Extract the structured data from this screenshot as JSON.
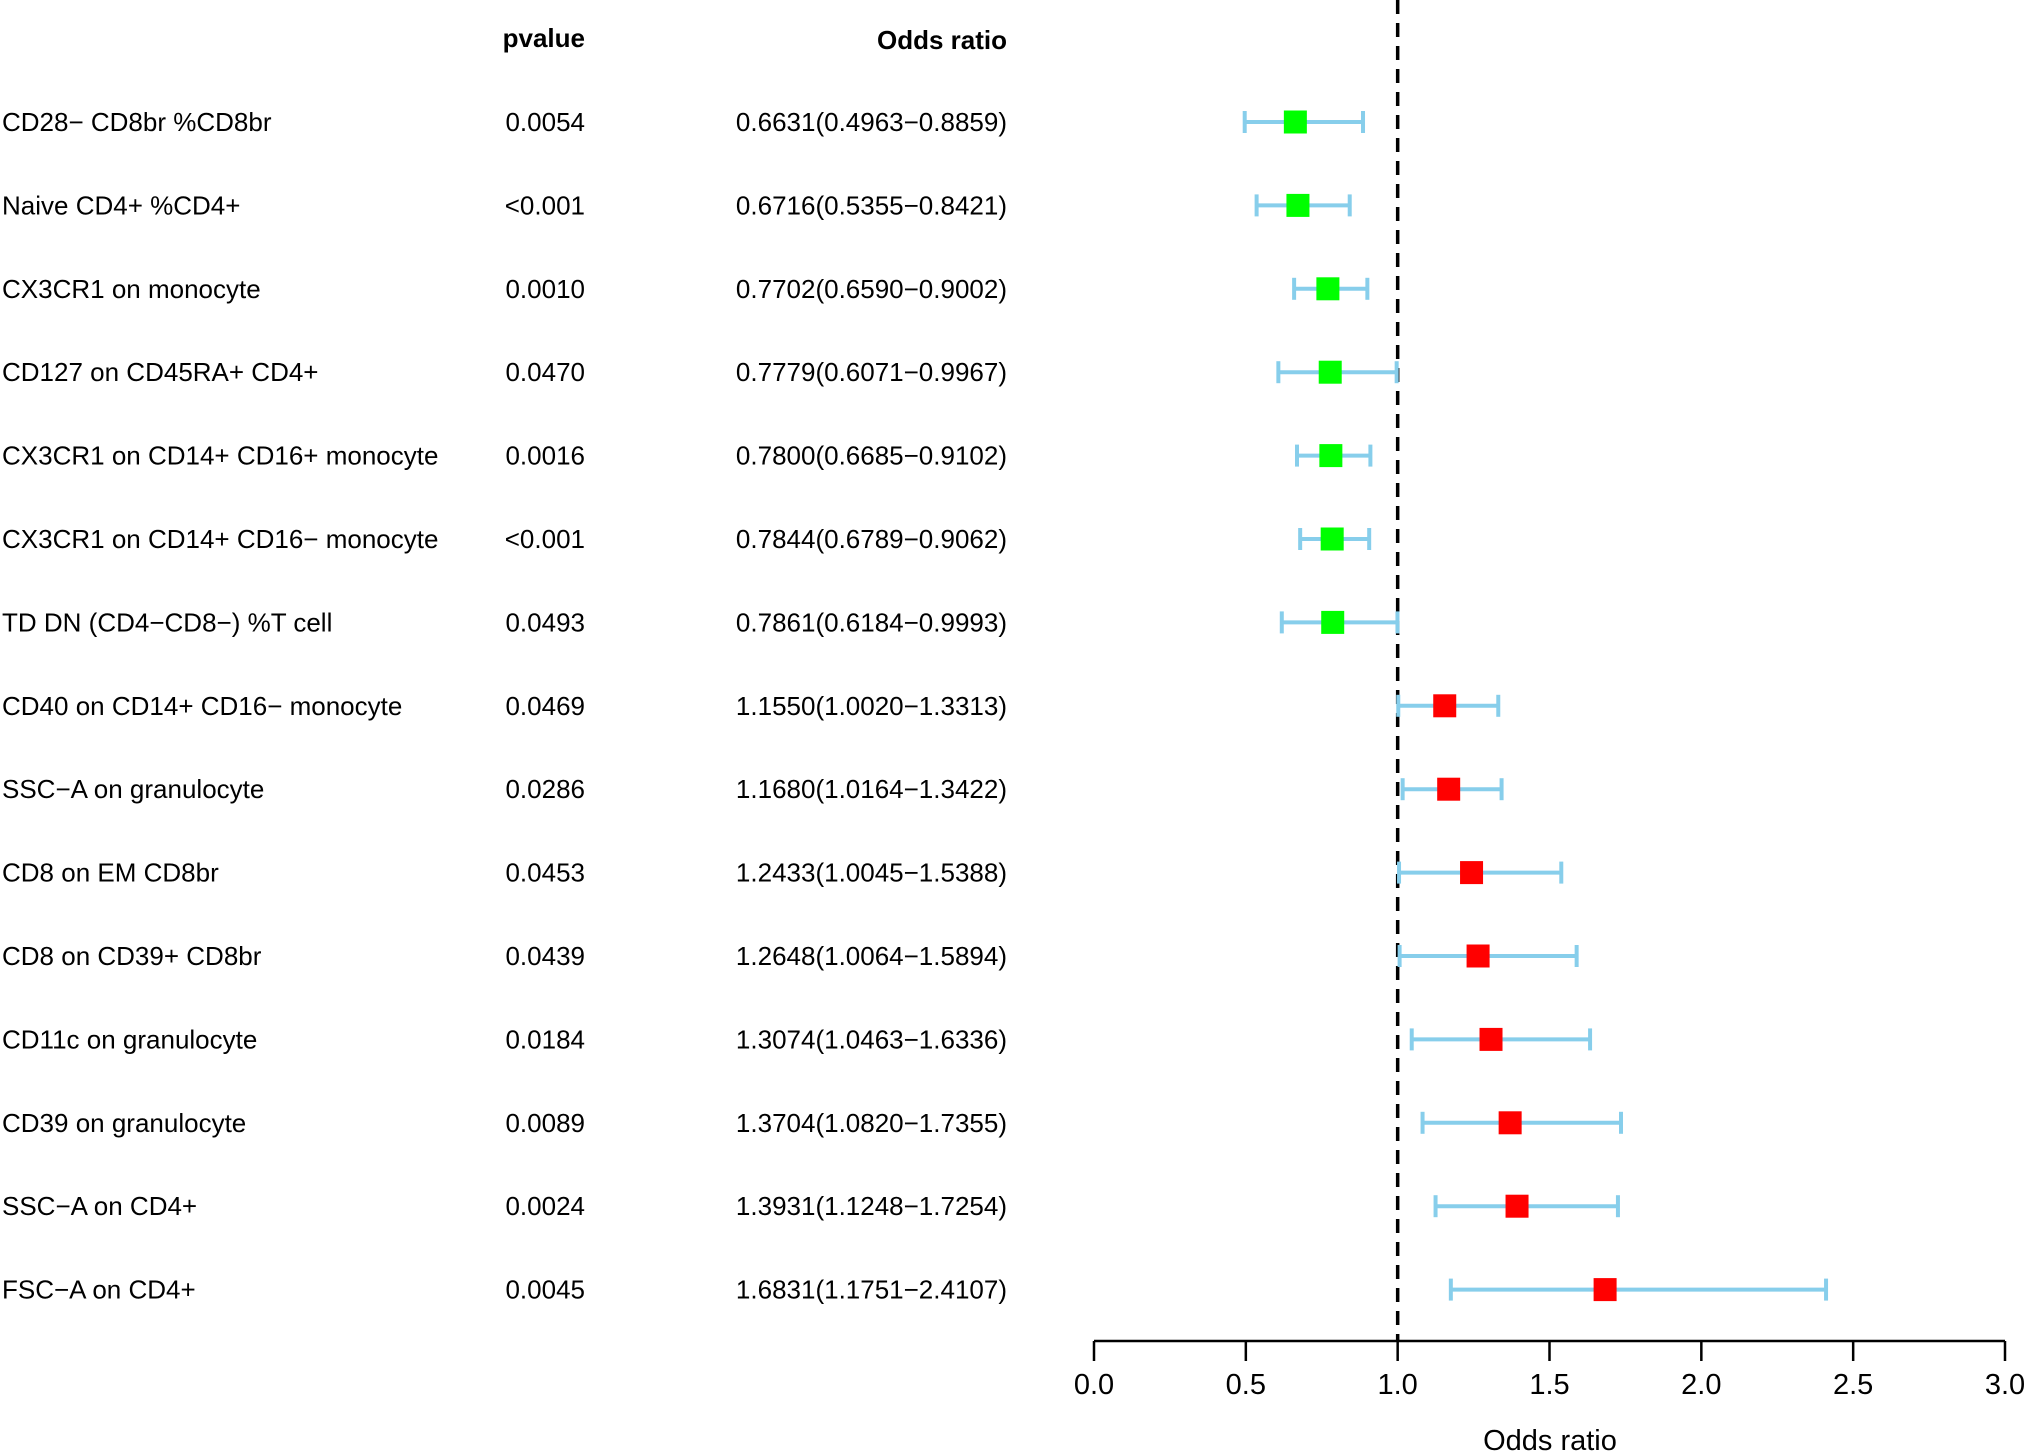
{
  "chart_data": {
    "type": "forest",
    "headers": {
      "pvalue": "pvalue",
      "odds_ratio": "Odds ratio"
    },
    "xlabel": "Odds ratio",
    "xlim": [
      0,
      3
    ],
    "xticks": [
      "0.0",
      "0.5",
      "1.0",
      "1.5",
      "2.0",
      "2.5",
      "3.0"
    ],
    "reference_line": 1.0,
    "colors": {
      "protective": "#00ff00",
      "risk": "#ff0000",
      "ci": "#87ceeb",
      "axis": "#000000"
    },
    "rows": [
      {
        "label": "CD28− CD8br %CD8br",
        "pvalue": "0.0054",
        "or_text": "0.6631(0.4963−0.8859)",
        "or": 0.6631,
        "lo": 0.4963,
        "hi": 0.8859
      },
      {
        "label": "Naive CD4+ %CD4+",
        "pvalue": "<0.001",
        "or_text": "0.6716(0.5355−0.8421)",
        "or": 0.6716,
        "lo": 0.5355,
        "hi": 0.8421
      },
      {
        "label": "CX3CR1 on monocyte",
        "pvalue": "0.0010",
        "or_text": "0.7702(0.6590−0.9002)",
        "or": 0.7702,
        "lo": 0.659,
        "hi": 0.9002
      },
      {
        "label": "CD127 on CD45RA+ CD4+",
        "pvalue": "0.0470",
        "or_text": "0.7779(0.6071−0.9967)",
        "or": 0.7779,
        "lo": 0.6071,
        "hi": 0.9967
      },
      {
        "label": "CX3CR1 on CD14+ CD16+ monocyte",
        "pvalue": "0.0016",
        "or_text": "0.7800(0.6685−0.9102)",
        "or": 0.78,
        "lo": 0.6685,
        "hi": 0.9102
      },
      {
        "label": "CX3CR1 on CD14+ CD16− monocyte",
        "pvalue": "<0.001",
        "or_text": "0.7844(0.6789−0.9062)",
        "or": 0.7844,
        "lo": 0.6789,
        "hi": 0.9062
      },
      {
        "label": "TD DN (CD4−CD8−) %T cell",
        "pvalue": "0.0493",
        "or_text": "0.7861(0.6184−0.9993)",
        "or": 0.7861,
        "lo": 0.6184,
        "hi": 0.9993
      },
      {
        "label": "CD40 on CD14+ CD16− monocyte",
        "pvalue": "0.0469",
        "or_text": "1.1550(1.0020−1.3313)",
        "or": 1.155,
        "lo": 1.002,
        "hi": 1.3313
      },
      {
        "label": "SSC−A on granulocyte",
        "pvalue": "0.0286",
        "or_text": "1.1680(1.0164−1.3422)",
        "or": 1.168,
        "lo": 1.0164,
        "hi": 1.3422
      },
      {
        "label": "CD8 on EM CD8br",
        "pvalue": "0.0453",
        "or_text": "1.2433(1.0045−1.5388)",
        "or": 1.2433,
        "lo": 1.0045,
        "hi": 1.5388
      },
      {
        "label": "CD8 on CD39+ CD8br",
        "pvalue": "0.0439",
        "or_text": "1.2648(1.0064−1.5894)",
        "or": 1.2648,
        "lo": 1.0064,
        "hi": 1.5894
      },
      {
        "label": "CD11c on granulocyte",
        "pvalue": "0.0184",
        "or_text": "1.3074(1.0463−1.6336)",
        "or": 1.3074,
        "lo": 1.0463,
        "hi": 1.6336
      },
      {
        "label": "CD39 on granulocyte",
        "pvalue": "0.0089",
        "or_text": "1.3704(1.0820−1.7355)",
        "or": 1.3704,
        "lo": 1.082,
        "hi": 1.7355
      },
      {
        "label": "SSC−A on CD4+",
        "pvalue": "0.0024",
        "or_text": "1.3931(1.1248−1.7254)",
        "or": 1.3931,
        "lo": 1.1248,
        "hi": 1.7254
      },
      {
        "label": "FSC−A on CD4+",
        "pvalue": "0.0045",
        "or_text": "1.6831(1.1751−2.4107)",
        "or": 1.6831,
        "lo": 1.1751,
        "hi": 2.4107
      }
    ]
  }
}
